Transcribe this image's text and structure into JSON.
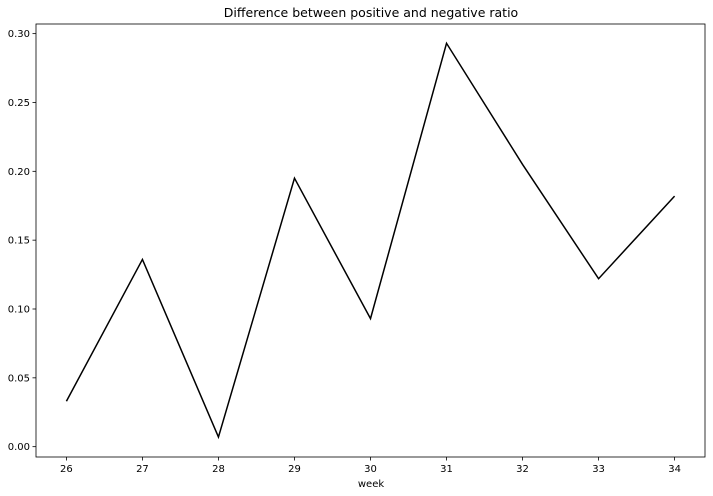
{
  "chart_data": {
    "type": "line",
    "title": "Difference between positive and negative ratio",
    "xlabel": "week",
    "ylabel": "",
    "x": [
      26,
      27,
      28,
      29,
      30,
      31,
      32,
      33,
      34
    ],
    "x_tick_labels": [
      "26",
      "27",
      "28",
      "29",
      "30",
      "31",
      "32",
      "33",
      "34"
    ],
    "xlim": [
      25.6,
      34.4
    ],
    "ylim": [
      -0.0075,
      0.307
    ],
    "y_ticks": [
      0.0,
      0.05,
      0.1,
      0.15,
      0.2,
      0.25,
      0.3
    ],
    "y_tick_labels": [
      "0.00",
      "0.05",
      "0.10",
      "0.15",
      "0.20",
      "0.25",
      "0.30"
    ],
    "grid": false,
    "legend": "none",
    "series": [
      {
        "values": [
          0.033,
          0.136,
          0.007,
          0.195,
          0.093,
          0.293,
          0.205,
          0.122,
          0.182
        ],
        "color": "#000000"
      }
    ]
  }
}
